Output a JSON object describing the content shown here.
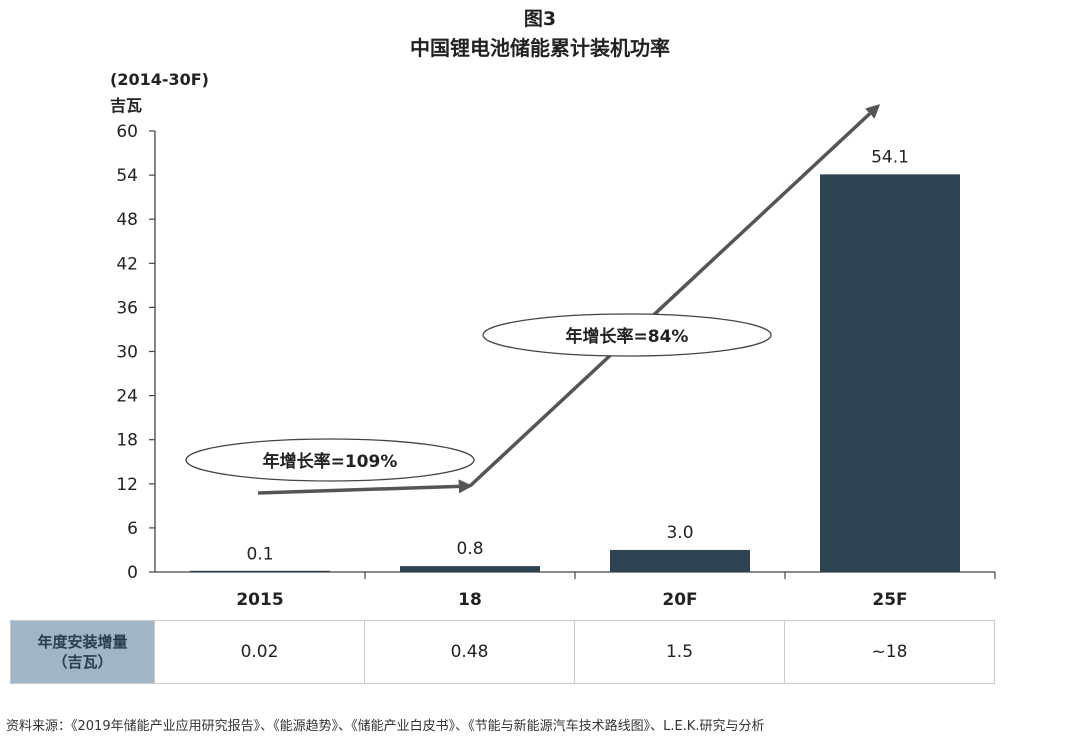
{
  "figure": {
    "number": "图3",
    "title": "中国锂电池储能累计装机功率"
  },
  "chart_data": {
    "type": "bar",
    "unit_range": "(2014-30F)",
    "unit_name": "吉瓦",
    "categories": [
      "2015",
      "18",
      "20F",
      "25F"
    ],
    "values": [
      0.1,
      0.8,
      3.0,
      54.1
    ],
    "value_labels": [
      "0.1",
      "0.8",
      "3.0",
      "54.1"
    ],
    "ylim": [
      0,
      60
    ],
    "yticks": [
      0,
      6,
      12,
      18,
      24,
      30,
      36,
      42,
      48,
      54,
      60
    ],
    "bar_color": "#2e4452",
    "grid": false,
    "annotations": [
      {
        "text": "年增长率=109%"
      },
      {
        "text": "年增长率=84%"
      }
    ]
  },
  "table": {
    "header_line1": "年度安装增量",
    "header_line2": "（吉瓦）",
    "cells": [
      "0.02",
      "0.48",
      "1.5",
      "~18"
    ]
  },
  "source": "资料来源：《2019年储能产业应用研究报告》、《能源趋势》、《储能产业白皮书》、《节能与新能源汽车技术路线图》、L.E.K.研究与分析"
}
